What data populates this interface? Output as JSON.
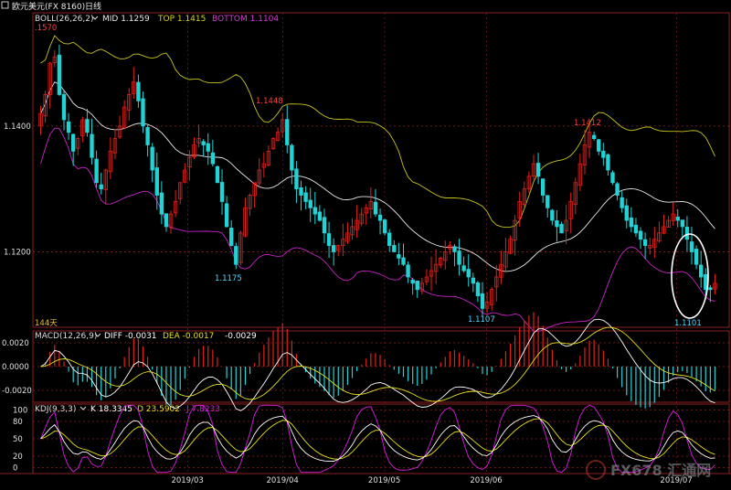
{
  "window": {
    "title": "欧元美元(FX 8160)",
    "period": "日线",
    "dropdown_icon": "chevron-down-icon"
  },
  "colors": {
    "background": "#000000",
    "panel_border": "#8b1f1f",
    "bull": "#e2211c",
    "bear": "#22d3d6",
    "mid": "#e8e8e8",
    "top": "#c8c41e",
    "bottom": "#c823c8",
    "diff": "#ffffff",
    "dea": "#e4df1c",
    "k_line": "#ffffff",
    "d_line": "#e4df1c",
    "j_line": "#d81ee0",
    "highlight_circle": "#ffffff",
    "high_label": "#ff4040",
    "low_label": "#4fd8ff"
  },
  "legends": {
    "boll": {
      "name": "BOLL(26,26,2)",
      "mid": "MID 1.1259",
      "top": "TOP 1.1415",
      "bottom": "BOTTOM 1.1104"
    },
    "macd": {
      "name": "MACD(12,26,9)",
      "diff": "DIFF -0.0031",
      "dea": "DEA -0.0017",
      "macd": "-0.0029"
    },
    "kdj": {
      "name": "KDJ(9,3,3)",
      "k": "K 18.3345",
      "d": "D 23.5902",
      "j": "J 7.8233"
    }
  },
  "annotations": {
    "high_1": "1.1448",
    "high_2": "1.1412",
    "low_1": "1.1175",
    "low_2": "1.1107",
    "low_3": "1.1101",
    "top_left_value": ".1570",
    "bar_count": "144天"
  },
  "watermark": "FX678 汇通网",
  "chart_data": [
    {
      "type": "candlestick",
      "title": "欧元美元(FX 8160) 日线",
      "indicator": "BOLL(26,26,2)",
      "y_ticks": [
        "1.1400",
        "1.1200"
      ],
      "x_ticks": [
        "2019/03",
        "2019/04",
        "2019/05",
        "2019/06",
        "2019/07"
      ],
      "ylim": [
        1.108,
        1.158
      ],
      "grid": true,
      "bar_count": 144,
      "key_points": [
        {
          "label": "1.1570",
          "value": 1.157,
          "at": "start"
        },
        {
          "label": "1.1448",
          "value": 1.1448,
          "at": "2019/03"
        },
        {
          "label": "1.1175",
          "value": 1.1175,
          "at": "2019/03"
        },
        {
          "label": "1.1107",
          "value": 1.1107,
          "at": "2019/05"
        },
        {
          "label": "1.1412",
          "value": 1.1412,
          "at": "2019/06"
        },
        {
          "label": "1.1101",
          "value": 1.1101,
          "at": "2019/07"
        }
      ],
      "closes": [
        1.142,
        1.145,
        1.15,
        1.151,
        1.145,
        1.141,
        1.139,
        1.136,
        1.138,
        1.141,
        1.139,
        1.135,
        1.131,
        1.13,
        1.133,
        1.136,
        1.138,
        1.14,
        1.143,
        1.145,
        1.147,
        1.144,
        1.14,
        1.137,
        1.133,
        1.129,
        1.126,
        1.124,
        1.126,
        1.128,
        1.131,
        1.133,
        1.135,
        1.137,
        1.138,
        1.137,
        1.136,
        1.134,
        1.131,
        1.128,
        1.124,
        1.121,
        1.118,
        1.123,
        1.127,
        1.129,
        1.131,
        1.133,
        1.134,
        1.136,
        1.138,
        1.139,
        1.141,
        1.137,
        1.133,
        1.13,
        1.129,
        1.128,
        1.127,
        1.126,
        1.125,
        1.123,
        1.121,
        1.12,
        1.121,
        1.122,
        1.123,
        1.124,
        1.125,
        1.126,
        1.127,
        1.128,
        1.126,
        1.125,
        1.123,
        1.121,
        1.12,
        1.119,
        1.118,
        1.116,
        1.115,
        1.114,
        1.115,
        1.116,
        1.117,
        1.118,
        1.119,
        1.12,
        1.121,
        1.12,
        1.118,
        1.117,
        1.116,
        1.115,
        1.113,
        1.111,
        1.112,
        1.114,
        1.116,
        1.118,
        1.12,
        1.122,
        1.125,
        1.128,
        1.13,
        1.132,
        1.134,
        1.132,
        1.129,
        1.127,
        1.125,
        1.124,
        1.123,
        1.125,
        1.128,
        1.131,
        1.134,
        1.137,
        1.139,
        1.138,
        1.136,
        1.135,
        1.133,
        1.131,
        1.129,
        1.127,
        1.125,
        1.124,
        1.123,
        1.122,
        1.121,
        1.121,
        1.122,
        1.123,
        1.124,
        1.125,
        1.126,
        1.125,
        1.124,
        1.122,
        1.12,
        1.118,
        1.116,
        1.114,
        1.114,
        1.115
      ]
    },
    {
      "type": "bar",
      "indicator": "MACD(12,26,9)",
      "y_ticks": [
        "0.0020",
        "0.0000",
        "-0.0020"
      ],
      "ylim": [
        -0.003,
        0.003
      ],
      "series_labels": [
        "DIFF -0.0031",
        "DEA -0.0017",
        "-0.0029"
      ],
      "last": {
        "diff": -0.0031,
        "dea": -0.0017,
        "macd": -0.0029
      }
    },
    {
      "type": "line",
      "indicator": "KDJ(9,3,3)",
      "y_ticks": [
        "100",
        "80",
        "50",
        "20",
        "0"
      ],
      "ylim": [
        -10,
        110
      ],
      "series_labels": [
        "K 18.3345",
        "D 23.5902",
        "J 7.8233"
      ],
      "last": {
        "k": 18.3345,
        "d": 23.5902,
        "j": 7.8233
      }
    }
  ]
}
